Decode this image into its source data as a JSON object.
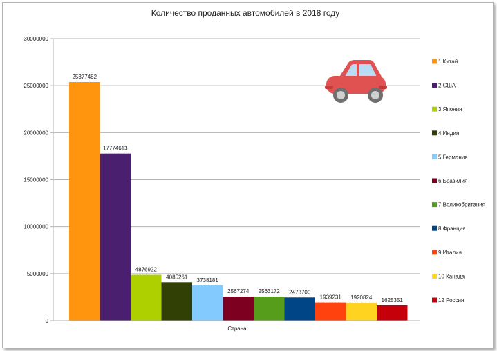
{
  "chart_data": {
    "type": "bar",
    "title": "Количество проданных автомобилей в 2018 году",
    "xlabel": "Страна",
    "ylabel": "",
    "ylim": [
      0,
      30000000
    ],
    "yticks": [
      0,
      5000000,
      10000000,
      15000000,
      20000000,
      25000000,
      30000000
    ],
    "ytick_labels": [
      "0",
      "5000000",
      "10000000",
      "15000000",
      "20000000",
      "25000000",
      "30000000"
    ],
    "grid": true,
    "legend": "right",
    "series": [
      {
        "name": "1 Китай",
        "value": 25377482,
        "label": "25377482",
        "color": "#ff950e"
      },
      {
        "name": "2 США",
        "value": 17774613,
        "label": "17774613",
        "color": "#4b1f6f"
      },
      {
        "name": "3 Япония",
        "value": 4876922,
        "label": "4876922",
        "color": "#aecf00"
      },
      {
        "name": "4 Индия",
        "value": 4085261,
        "label": "4085261",
        "color": "#314004"
      },
      {
        "name": "5 Германия",
        "value": 3738181,
        "label": "3738181",
        "color": "#83caff"
      },
      {
        "name": "6 Бразилия",
        "value": 2567274,
        "label": "2567274",
        "color": "#7e0021"
      },
      {
        "name": "7 Великобритания",
        "value": 2563172,
        "label": "2563172",
        "color": "#579d1c"
      },
      {
        "name": "8 Франция",
        "value": 2473700,
        "label": "2473700",
        "color": "#004586"
      },
      {
        "name": "9 Италия",
        "value": 1939231,
        "label": "1939231",
        "color": "#ff420e"
      },
      {
        "name": "10 Канада",
        "value": 1920824,
        "label": "1920824",
        "color": "#ffd320"
      },
      {
        "name": "12 Россия",
        "value": 1625351,
        "label": "1625351",
        "color": "#c5000b"
      }
    ]
  },
  "illustration": {
    "name": "car-icon",
    "body_color": "#e05252",
    "window_color": "#b8dcf3",
    "wheel_color": "#9a9a9a"
  }
}
